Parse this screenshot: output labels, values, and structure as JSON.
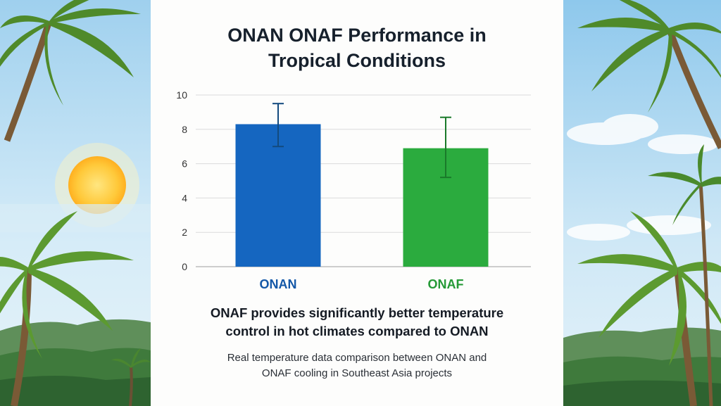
{
  "title_lines": [
    "ONAN ONAF Performance in",
    "Tropical Conditions"
  ],
  "caption": {
    "headline_lines": [
      "ONAF provides significantly better temperature",
      "control in hot climates compared to ONAN"
    ],
    "subline_lines": [
      "Real temperature data comparison between ONAN and",
      "ONAF cooling in Southeast Asia projects"
    ]
  },
  "chart_data": {
    "type": "bar",
    "categories": [
      "ONAN",
      "ONAF"
    ],
    "values": [
      8.3,
      6.9
    ],
    "error_bars": [
      {
        "low": 7.0,
        "high": 9.5
      },
      {
        "low": 5.2,
        "high": 8.7
      }
    ],
    "ylim": [
      0,
      10
    ],
    "yticks": [
      0,
      2,
      4,
      6,
      8,
      10
    ],
    "grid": true,
    "colors": [
      "#1566c0",
      "#2bab3e"
    ],
    "error_bar_colors": [
      "#134a7e",
      "#1a7a2a"
    ],
    "label_colors": [
      "#1458a8",
      "#259a37"
    ]
  },
  "background": {
    "left_icons": [
      "palm-tree-icon",
      "sun-icon",
      "hills-icon"
    ],
    "right_icons": [
      "palm-tree-icon",
      "clouds-icon",
      "hills-icon"
    ]
  }
}
